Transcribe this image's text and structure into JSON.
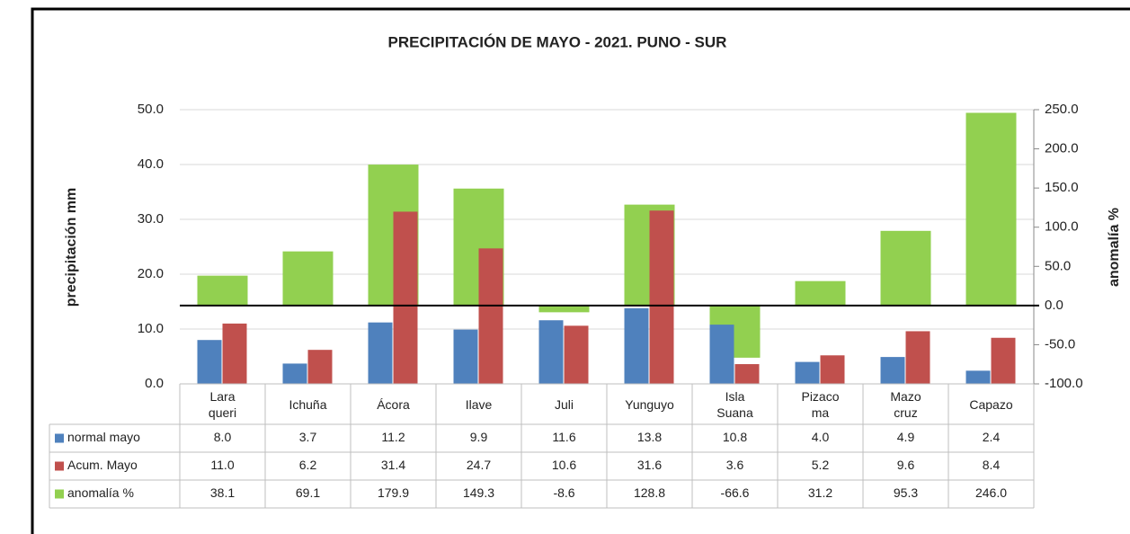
{
  "chart_data": {
    "type": "bar",
    "title": "PRECIPITACIÓN DE MAYO - 2021. PUNO - SUR",
    "y_label": "precipitación mm",
    "y2_label": "anomalía %",
    "categories": [
      "Lara\nqueri",
      "Ichuña",
      "Ácora",
      "Ilave",
      "Juli",
      "Yunguyo",
      "Isla\nSuana",
      "Pizaco\nma",
      "Mazo\ncruz",
      "Capazo"
    ],
    "series": [
      {
        "name": "normal mayo",
        "color": "#4f81bd",
        "values": [
          8.0,
          3.7,
          11.2,
          9.9,
          11.6,
          13.8,
          10.8,
          4.0,
          4.9,
          2.4
        ],
        "value_labels": [
          "8.0",
          "3.7",
          "11.2",
          "9.9",
          "11.6",
          "13.8",
          "10.8",
          "4.0",
          "4.9",
          "2.4"
        ]
      },
      {
        "name": "Acum. Mayo",
        "color": "#c0504d",
        "values": [
          11.0,
          6.2,
          31.4,
          24.7,
          10.6,
          31.6,
          3.6,
          5.2,
          9.6,
          8.4
        ],
        "value_labels": [
          "11.0",
          "6.2",
          "31.4",
          "24.7",
          "10.6",
          "31.6",
          "3.6",
          "5.2",
          "9.6",
          "8.4"
        ]
      },
      {
        "name": "anomalía %",
        "color": "#92d050",
        "axis": "y2",
        "values": [
          38.1,
          69.1,
          179.9,
          149.3,
          -8.6,
          128.8,
          -66.6,
          31.2,
          95.3,
          246.0
        ],
        "value_labels": [
          "38.1",
          "69.1",
          "179.9",
          "149.3",
          "-8.6",
          "128.8",
          "-66.6",
          "31.2",
          "95.3",
          "246.0"
        ]
      }
    ],
    "ylim": [
      0,
      50
    ],
    "yticks": [
      {
        "value": 0,
        "label": "0.0"
      },
      {
        "value": 10,
        "label": "10.0"
      },
      {
        "value": 20,
        "label": "20.0"
      },
      {
        "value": 30,
        "label": "30.0"
      },
      {
        "value": 40,
        "label": "40.0"
      },
      {
        "value": 50,
        "label": "50.0"
      }
    ],
    "y2lim": [
      -100,
      250
    ],
    "y2ticks": [
      {
        "value": -100,
        "label": "-100.0"
      },
      {
        "value": -50,
        "label": "-50.0"
      },
      {
        "value": 0,
        "label": "0.0"
      },
      {
        "value": 50,
        "label": "50.0"
      },
      {
        "value": 100,
        "label": "100.0"
      },
      {
        "value": 150,
        "label": "150.0"
      },
      {
        "value": 200,
        "label": "200.0"
      },
      {
        "value": 250,
        "label": "250.0"
      }
    ],
    "grid": true
  }
}
